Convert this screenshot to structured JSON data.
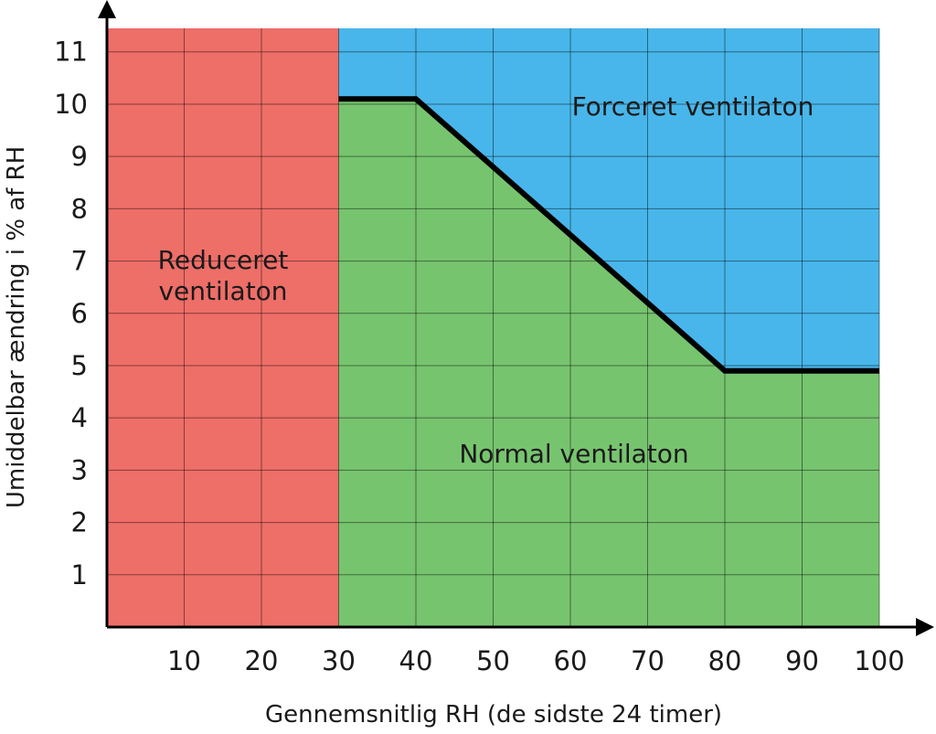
{
  "chart_data": {
    "type": "area",
    "xlabel": "Gennemsnitlig RH (de sidste 24 timer)",
    "ylabel": "Umiddelbar ændring i % af RH",
    "xlim": [
      0,
      100
    ],
    "ylim": [
      0,
      11
    ],
    "x_ticks": [
      "10",
      "20",
      "30",
      "40",
      "50",
      "60",
      "70",
      "80",
      "90",
      "100"
    ],
    "y_ticks": [
      "1",
      "2",
      "3",
      "4",
      "5",
      "6",
      "7",
      "8",
      "9",
      "10",
      "11"
    ],
    "grid": true,
    "threshold_line": {
      "x": [
        30,
        40,
        80,
        100
      ],
      "y": [
        10.1,
        10.1,
        4.9,
        4.9
      ]
    },
    "regions": [
      {
        "label_lines": [
          "Reduceret",
          "ventilaton"
        ],
        "color": "#ee6e68",
        "x_range": [
          0,
          30
        ]
      },
      {
        "label_lines": [
          "Forceret ventilaton"
        ],
        "color": "#48b6ea",
        "x_range": [
          30,
          100
        ],
        "position": "above line"
      },
      {
        "label_lines": [
          "Normal ventilaton"
        ],
        "color": "#77c46f",
        "x_range": [
          30,
          100
        ],
        "position": "below line"
      }
    ]
  }
}
